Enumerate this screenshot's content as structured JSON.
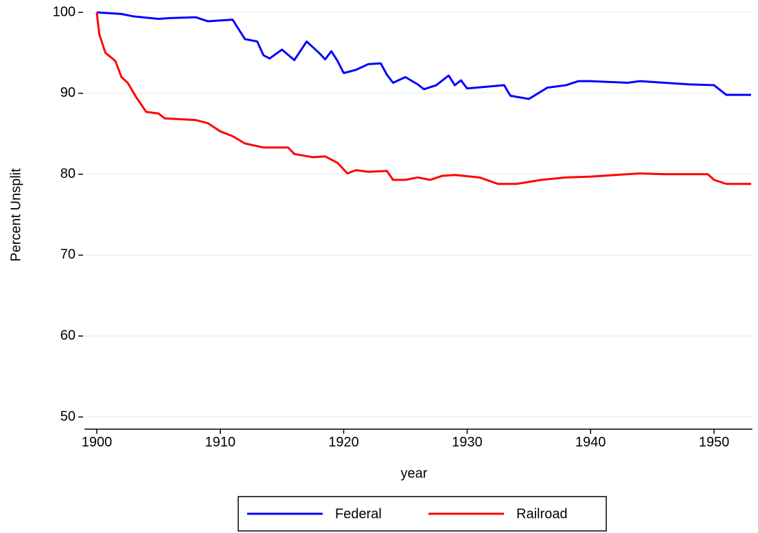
{
  "chart_data": {
    "type": "line",
    "x_label": "year",
    "y_label": "Percent Unsplit",
    "xlim": [
      1899,
      1953.1
    ],
    "ylim": [
      48.5,
      100.8
    ],
    "xticks": [
      1900,
      1910,
      1920,
      1930,
      1940,
      1950
    ],
    "yticks": [
      50,
      60,
      70,
      80,
      90,
      100
    ],
    "grid": true,
    "legend": "bottom",
    "series": [
      {
        "name": "Federal",
        "color": "#0000ff",
        "x": [
          1900,
          1902,
          1903,
          1905,
          1906,
          1908,
          1909,
          1911,
          1912,
          1913,
          1913.5,
          1914,
          1915,
          1916,
          1917,
          1918,
          1918.5,
          1919,
          1919.5,
          1920,
          1921,
          1922,
          1923,
          1923.5,
          1924,
          1925,
          1926,
          1926.5,
          1927.5,
          1928.5,
          1929,
          1929.5,
          1930,
          1933,
          1933.5,
          1935,
          1936.5,
          1938,
          1939,
          1940,
          1943,
          1944,
          1948,
          1950,
          1951,
          1953
        ],
        "values": [
          100,
          99.8,
          99.5,
          99.2,
          99.3,
          99.4,
          98.9,
          99.1,
          96.7,
          96.4,
          94.7,
          94.3,
          95.4,
          94.1,
          96.4,
          95.0,
          94.2,
          95.2,
          94.0,
          92.5,
          92.9,
          93.6,
          93.7,
          92.3,
          91.3,
          92.0,
          91.1,
          90.5,
          91.0,
          92.2,
          91.0,
          91.6,
          90.6,
          91.0,
          89.7,
          89.3,
          90.7,
          91.0,
          91.5,
          91.5,
          91.3,
          91.5,
          91.1,
          91.0,
          89.8,
          89.8
        ]
      },
      {
        "name": "Railroad",
        "color": "#ff0000",
        "x": [
          1900,
          1900.2,
          1900.7,
          1901.5,
          1902,
          1902.5,
          1903.2,
          1904,
          1905,
          1905.5,
          1908,
          1909,
          1910,
          1911,
          1912,
          1913.5,
          1915.5,
          1916,
          1917.5,
          1918.5,
          1919.5,
          1920.3,
          1921,
          1922,
          1923.5,
          1924,
          1925,
          1926,
          1927,
          1928,
          1929,
          1931,
          1932.5,
          1934,
          1936,
          1938,
          1940,
          1942,
          1944,
          1946,
          1949.5,
          1950,
          1951,
          1953
        ],
        "values": [
          100,
          97.3,
          95.0,
          94.0,
          92.0,
          91.3,
          89.5,
          87.7,
          87.5,
          86.9,
          86.7,
          86.3,
          85.3,
          84.7,
          83.8,
          83.3,
          83.3,
          82.5,
          82.1,
          82.2,
          81.4,
          80.1,
          80.5,
          80.3,
          80.4,
          79.3,
          79.3,
          79.6,
          79.3,
          79.8,
          79.9,
          79.6,
          78.8,
          78.8,
          79.3,
          79.6,
          79.7,
          79.9,
          80.1,
          80.0,
          80.0,
          79.3,
          78.8,
          78.8
        ]
      }
    ]
  }
}
